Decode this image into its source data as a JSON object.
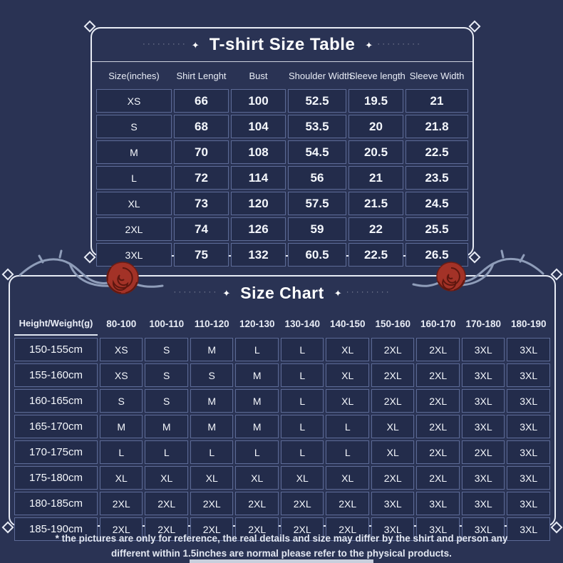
{
  "page": {
    "background_color": "#2a3354",
    "cell_background_color": "#232c4b",
    "cell_border_color": "#5d6b97",
    "frame_border_color": "#e8ecf5",
    "rose_color": "#a33227",
    "vine_color": "#8f9db9",
    "footer_line1": "* the pictures are only for reference, the real details and size may  differ by the shirt and person any",
    "footer_line2": "different within 1.5inches are normal please refer to the physical products."
  },
  "decor": {
    "sparkle": "✦",
    "dotted_leader": "·········"
  },
  "size_table": {
    "title": "T-shirt Size Table",
    "columns": [
      "Size(inches)",
      "Shirt Lenght",
      "Bust",
      "Shoulder Width",
      "Sleeve length",
      "Sleeve Width"
    ],
    "rows": [
      {
        "size": "XS",
        "values": [
          "66",
          "100",
          "52.5",
          "19.5",
          "21"
        ]
      },
      {
        "size": "S",
        "values": [
          "68",
          "104",
          "53.5",
          "20",
          "21.8"
        ]
      },
      {
        "size": "M",
        "values": [
          "70",
          "108",
          "54.5",
          "20.5",
          "22.5"
        ]
      },
      {
        "size": "L",
        "values": [
          "72",
          "114",
          "56",
          "21",
          "23.5"
        ]
      },
      {
        "size": "XL",
        "values": [
          "73",
          "120",
          "57.5",
          "21.5",
          "24.5"
        ]
      },
      {
        "size": "2XL",
        "values": [
          "74",
          "126",
          "59",
          "22",
          "25.5"
        ]
      },
      {
        "size": "3XL",
        "values": [
          "75",
          "132",
          "60.5",
          "22.5",
          "26.5"
        ]
      }
    ]
  },
  "size_chart": {
    "title": "Size Chart",
    "corner_label": "Height/Weight(g)",
    "weight_columns": [
      "80-100",
      "100-110",
      "110-120",
      "120-130",
      "130-140",
      "140-150",
      "150-160",
      "160-170",
      "170-180",
      "180-190"
    ],
    "rows": [
      {
        "height": "150-155cm",
        "values": [
          "XS",
          "S",
          "M",
          "L",
          "L",
          "XL",
          "2XL",
          "2XL",
          "3XL",
          "3XL"
        ]
      },
      {
        "height": "155-160cm",
        "values": [
          "XS",
          "S",
          "S",
          "M",
          "L",
          "XL",
          "2XL",
          "2XL",
          "3XL",
          "3XL"
        ]
      },
      {
        "height": "160-165cm",
        "values": [
          "S",
          "S",
          "M",
          "M",
          "L",
          "XL",
          "2XL",
          "2XL",
          "3XL",
          "3XL"
        ]
      },
      {
        "height": "165-170cm",
        "values": [
          "M",
          "M",
          "M",
          "M",
          "L",
          "L",
          "XL",
          "2XL",
          "3XL",
          "3XL"
        ]
      },
      {
        "height": "170-175cm",
        "values": [
          "L",
          "L",
          "L",
          "L",
          "L",
          "L",
          "XL",
          "2XL",
          "2XL",
          "3XL"
        ]
      },
      {
        "height": "175-180cm",
        "values": [
          "XL",
          "XL",
          "XL",
          "XL",
          "XL",
          "XL",
          "2XL",
          "2XL",
          "3XL",
          "3XL"
        ]
      },
      {
        "height": "180-185cm",
        "values": [
          "2XL",
          "2XL",
          "2XL",
          "2XL",
          "2XL",
          "2XL",
          "3XL",
          "3XL",
          "3XL",
          "3XL"
        ]
      },
      {
        "height": "185-190cm",
        "values": [
          "2XL",
          "2XL",
          "2XL",
          "2XL",
          "2XL",
          "2XL",
          "3XL",
          "3XL",
          "3XL",
          "3XL"
        ]
      }
    ]
  }
}
